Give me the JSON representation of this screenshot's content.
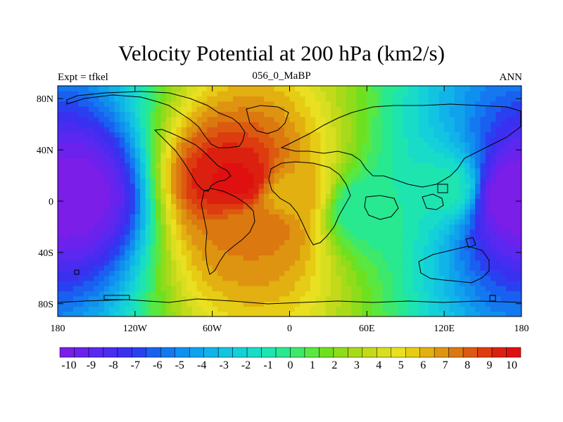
{
  "title": "Velocity Potential at 200 hPa (km2/s)",
  "left_string": "Expt = tfkel",
  "center_string": "056_0_MaBP",
  "right_string": "ANN",
  "chart_data": {
    "type": "heatmap",
    "title": "Velocity Potential at 200 hPa (km2/s)",
    "x_range": [
      -180,
      180
    ],
    "y_range": [
      -90,
      90
    ],
    "x_ticks": [
      {
        "value": -180,
        "label": "180"
      },
      {
        "value": -120,
        "label": "120W"
      },
      {
        "value": -60,
        "label": "60W"
      },
      {
        "value": 0,
        "label": "0"
      },
      {
        "value": 60,
        "label": "60E"
      },
      {
        "value": 120,
        "label": "120E"
      },
      {
        "value": 180,
        "label": "180"
      }
    ],
    "y_ticks": [
      {
        "value": 80,
        "label": "80N"
      },
      {
        "value": 40,
        "label": "40N"
      },
      {
        "value": 0,
        "label": "0"
      },
      {
        "value": -40,
        "label": "40S"
      },
      {
        "value": -80,
        "label": "80S"
      }
    ],
    "colorbar": {
      "labels": [
        "-10",
        "-9",
        "-8",
        "-7",
        "-6",
        "-5",
        "-4",
        "-3",
        "-2",
        "-1",
        "0",
        "1",
        "2",
        "3",
        "4",
        "5",
        "6",
        "7",
        "8",
        "9",
        "10"
      ],
      "colors": [
        "#7a1ee8",
        "#6a22ec",
        "#5a28f0",
        "#4a2cf0",
        "#3a30f0",
        "#2a40f0",
        "#1a60f0",
        "#1478f0",
        "#1090ee",
        "#10a2ec",
        "#10b4e8",
        "#12c4e2",
        "#14d0d8",
        "#18dcc8",
        "#1ee4b0",
        "#28e890",
        "#3ee86a",
        "#5ae840",
        "#6ee020",
        "#8edc1a",
        "#a8da1a",
        "#c2da1a",
        "#d8de20",
        "#e8e020",
        "#e6cc14",
        "#e2b010",
        "#de9410",
        "#dc7810",
        "#dc5a10",
        "#dc3c10",
        "#dc2010",
        "#e01010"
      ]
    },
    "field_features": [
      {
        "lon": -40,
        "lat": 15,
        "value": 9.5
      },
      {
        "lon": -20,
        "lat": -20,
        "value": 7
      },
      {
        "lon": 0,
        "lat": 5,
        "value": 6
      },
      {
        "lon": 175,
        "lat": 5,
        "value": -10
      },
      {
        "lon": -180,
        "lat": 5,
        "value": -10
      },
      {
        "lon": 120,
        "lat": 10,
        "value": -1
      },
      {
        "lon": 60,
        "lat": -5,
        "value": -0.5
      }
    ]
  }
}
